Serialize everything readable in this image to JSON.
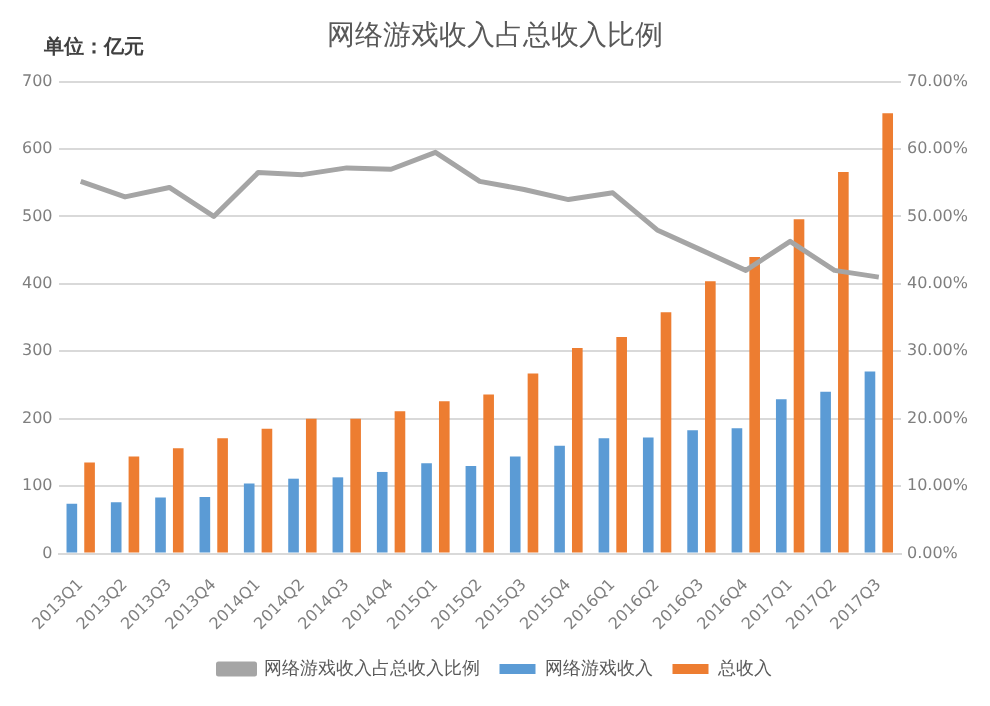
{
  "chart_data": {
    "type": "bar",
    "title": "网络游戏收入占总收入比例",
    "ylabel": "单位：亿元",
    "categories": [
      "2013Q1",
      "2013Q2",
      "2013Q3",
      "2013Q4",
      "2014Q1",
      "2014Q2",
      "2014Q3",
      "2014Q4",
      "2015Q1",
      "2015Q2",
      "2015Q3",
      "2015Q4",
      "2016Q1",
      "2016Q2",
      "2016Q3",
      "2016Q4",
      "2017Q1",
      "2017Q2",
      "2017Q3"
    ],
    "series": [
      {
        "name": "网络游戏收入",
        "color": "#5b9bd5",
        "values": [
          74,
          76,
          83,
          84,
          104,
          111,
          113,
          121,
          134,
          130,
          144,
          160,
          171,
          172,
          183,
          186,
          229,
          240,
          270
        ]
      },
      {
        "name": "总收入",
        "color": "#ed7d31",
        "values": [
          135,
          144,
          156,
          171,
          185,
          200,
          200,
          211,
          226,
          236,
          267,
          305,
          321,
          358,
          404,
          440,
          496,
          566,
          653
        ]
      },
      {
        "name": "网络游戏收入占总收入比例",
        "type": "line",
        "axis": "y2",
        "color": "#a5a5a5",
        "values": [
          55.2,
          52.9,
          54.3,
          50.0,
          56.5,
          56.2,
          57.2,
          57.0,
          59.5,
          55.2,
          54.0,
          52.5,
          53.5,
          48.0,
          45.0,
          42.0,
          46.3,
          42.0,
          41.0
        ]
      }
    ],
    "ylim": [
      0,
      700
    ],
    "yticks": [
      0,
      100,
      200,
      300,
      400,
      500,
      600,
      700
    ],
    "y2lim": [
      0,
      70
    ],
    "y2ticks": [
      {
        "value": 0,
        "label": "0.00%"
      },
      {
        "value": 10,
        "label": "10.00%"
      },
      {
        "value": 20,
        "label": "20.00%"
      },
      {
        "value": 30,
        "label": "30.00%"
      },
      {
        "value": 40,
        "label": "40.00%"
      },
      {
        "value": 50,
        "label": "50.00%"
      },
      {
        "value": 60,
        "label": "60.00%"
      },
      {
        "value": 70,
        "label": "70.00%"
      }
    ],
    "grid": "y",
    "legend": "bottom",
    "marker": "none"
  }
}
